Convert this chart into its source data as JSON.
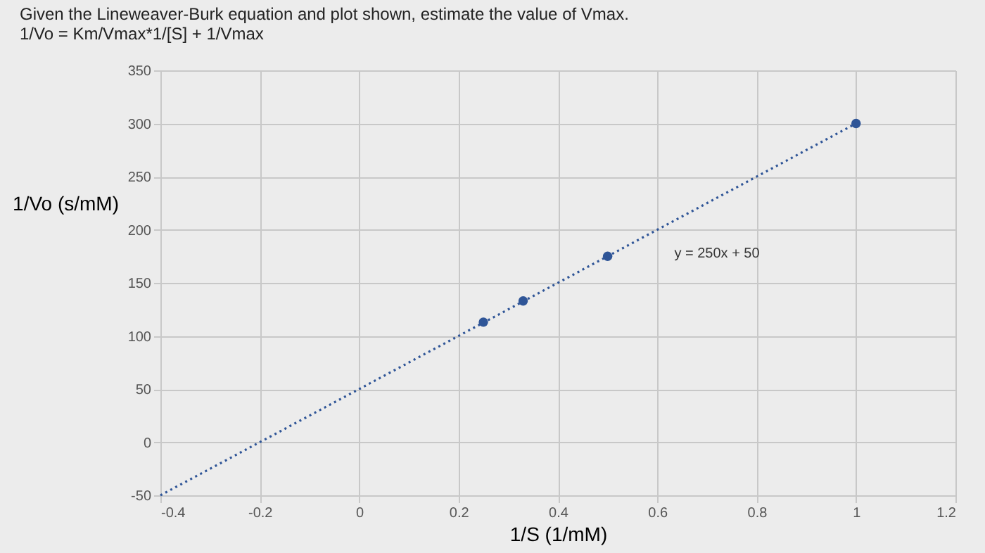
{
  "chart_data": {
    "type": "scatter",
    "title": "Given the Lineweaver-Burk equation and plot shown, estimate the value of Vmax.",
    "subtitle": "1/Vo = Km/Vmax*1/[S] + 1/Vmax",
    "xlabel": "1/S (1/mM)",
    "ylabel": "1/Vo (s/mM)",
    "series": [
      {
        "marker": "circle",
        "color": "#2f5597",
        "x": [
          0.25,
          0.33,
          0.5,
          1.0
        ],
        "values": [
          113,
          133,
          175,
          300
        ]
      },
      {
        "type": "line",
        "marker": "none",
        "line_style": "dotted",
        "color": "#2f5597",
        "x": [
          -0.4,
          1.0
        ],
        "values": [
          -50,
          300
        ]
      }
    ],
    "annotations": [
      "y = 250x + 50"
    ],
    "xlim": [
      -0.4,
      1.2
    ],
    "xticks": [
      -0.4,
      -0.2,
      0,
      0.2,
      0.4,
      0.6,
      0.8,
      1,
      1.2
    ],
    "ylim": [
      -50,
      350
    ],
    "yticks": [
      -50,
      0,
      50,
      100,
      150,
      200,
      250,
      300,
      350
    ],
    "grid": true
  }
}
